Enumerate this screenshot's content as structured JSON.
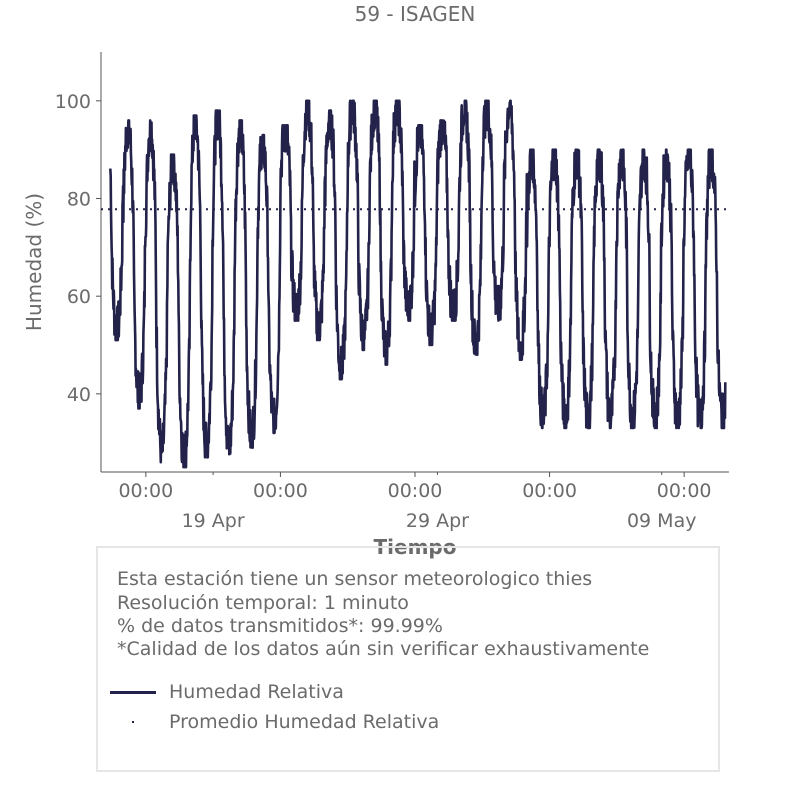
{
  "chart_data": {
    "type": "line",
    "title": "59 - ISAGEN",
    "xlabel": "Tiempo",
    "ylabel": "Humedad (%)",
    "x_range": [
      "2025-04-14",
      "2025-05-12"
    ],
    "ylim": [
      24,
      110
    ],
    "yticks": [
      40,
      60,
      80,
      100
    ],
    "xticks": [
      {
        "date": "2025-04-16",
        "label": "00:00",
        "sublabel": ""
      },
      {
        "date": "2025-04-22",
        "label": "00:00",
        "sublabel": ""
      },
      {
        "date": "2025-04-28",
        "label": "00:00",
        "sublabel": ""
      },
      {
        "date": "2025-05-04",
        "label": "00:00",
        "sublabel": ""
      },
      {
        "date": "2025-05-10",
        "label": "00:00",
        "sublabel": ""
      }
    ],
    "date_labels": [
      {
        "date": "2025-04-19",
        "label": "19 Apr"
      },
      {
        "date": "2025-04-29",
        "label": "29 Apr"
      },
      {
        "date": "2025-05-09",
        "label": "09 May"
      }
    ],
    "grid": false,
    "series": [
      {
        "name": "Humedad Relativa",
        "color": "#22224a",
        "style": "solid",
        "daily_max": [
          99,
          95,
          95,
          88,
          96,
          97,
          95,
          92,
          94,
          99,
          97,
          99,
          99,
          99,
          94,
          95,
          99,
          99,
          99,
          89
        ],
        "daily_min": [
          53,
          39,
          28,
          27,
          29,
          29,
          31,
          34,
          57,
          53,
          45,
          51,
          48,
          57,
          52,
          57,
          50,
          57,
          49,
          35
        ],
        "start_date": "2025-04-14T10:00",
        "end_date": "2025-05-11T20:00"
      },
      {
        "name": "Promedio Humedad Relativa",
        "color": "#22224a",
        "style": "dotted",
        "value": 77.8
      }
    ]
  },
  "notes": {
    "sensor": "Esta estación tiene un sensor meteorologico thies",
    "resolution": "Resolución temporal: 1 minuto",
    "transmitted": "% de datos transmitidos*: 99.99%",
    "quality": "*Calidad de los datos aún sin verificar exhaustivamente"
  },
  "legend": {
    "line_label": "Humedad Relativa",
    "avg_label": "Promedio Humedad Relativa"
  }
}
